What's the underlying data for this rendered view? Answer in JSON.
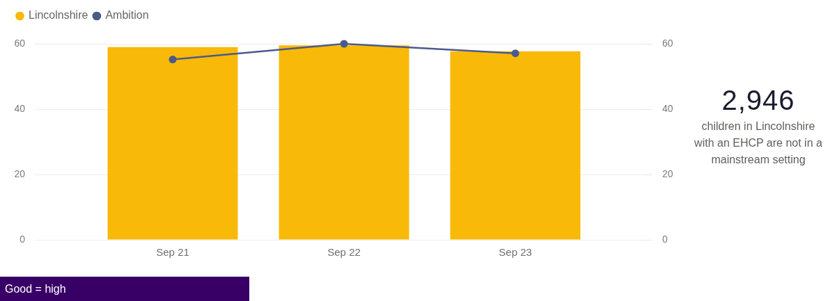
{
  "chart_data": [
    {
      "type": "bar",
      "categories": [
        "Sep 21",
        "Sep 22",
        "Sep 23"
      ],
      "series": [
        {
          "name": "Lincolnshire",
          "color": "#f9b908",
          "values": [
            59,
            59.5,
            57.7
          ]
        },
        {
          "name": "Ambition",
          "type": "line",
          "axis": "y2",
          "color": "#4a5a8c",
          "values": [
            55.2,
            60,
            57.1
          ]
        }
      ],
      "ylim": [
        0,
        60
      ],
      "yticks": [
        0,
        20,
        40,
        60
      ],
      "y2lim": [
        0,
        60
      ],
      "y2ticks": [
        0,
        20,
        40,
        60
      ],
      "grid": "y",
      "legend": "top left",
      "marker": "circle",
      "annotations": [
        "Good = high"
      ]
    },
    {
      "type": "other",
      "title": "2,946",
      "subtitle": "children in Lincolnshire with an EHCP are not in a mainstream setting"
    }
  ]
}
